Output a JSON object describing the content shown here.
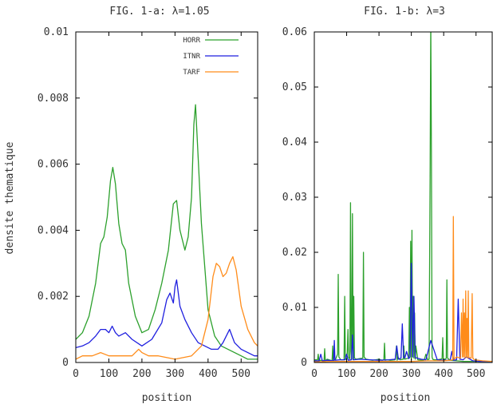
{
  "chart_data": [
    {
      "type": "line",
      "title": "FIG. 1-a: λ=1.05",
      "xlabel": "position",
      "ylabel": "densite thematique",
      "xlim": [
        0,
        550
      ],
      "ylim": [
        0,
        0.01
      ],
      "xticks": [
        0,
        100,
        200,
        300,
        400,
        500
      ],
      "yticks": [
        0,
        0.002,
        0.004,
        0.006,
        0.008,
        0.01
      ],
      "ytick_labels": [
        "0",
        "0.002",
        "0.004",
        "0.006",
        "0.008",
        "0.01"
      ],
      "legend_position": "top-right",
      "grid": false,
      "series": [
        {
          "name": "HORR",
          "color": "#2ca02c",
          "x": [
            0,
            20,
            40,
            60,
            75,
            85,
            95,
            105,
            112,
            120,
            130,
            140,
            150,
            160,
            180,
            200,
            220,
            240,
            260,
            280,
            295,
            305,
            315,
            330,
            340,
            350,
            357,
            362,
            370,
            380,
            400,
            420,
            440,
            460,
            480,
            500,
            520,
            540,
            550
          ],
          "y": [
            0.0007,
            0.0009,
            0.0014,
            0.0024,
            0.0036,
            0.0038,
            0.0044,
            0.0055,
            0.0059,
            0.0054,
            0.0042,
            0.0036,
            0.0034,
            0.0024,
            0.0014,
            0.0009,
            0.001,
            0.0016,
            0.0024,
            0.0034,
            0.0048,
            0.0049,
            0.004,
            0.0034,
            0.0038,
            0.005,
            0.0072,
            0.0078,
            0.0062,
            0.0042,
            0.0016,
            0.0008,
            0.0005,
            0.0004,
            0.0003,
            0.0002,
            0.0001,
            0.0001,
            0.0001
          ]
        },
        {
          "name": "ITNR",
          "color": "#1f1fdf",
          "x": [
            0,
            20,
            40,
            60,
            75,
            90,
            100,
            110,
            120,
            130,
            150,
            170,
            200,
            230,
            260,
            275,
            285,
            295,
            300,
            305,
            315,
            330,
            350,
            370,
            390,
            410,
            430,
            445,
            455,
            465,
            480,
            500,
            520,
            540,
            550
          ],
          "y": [
            0.00045,
            0.0005,
            0.0006,
            0.0008,
            0.001,
            0.001,
            0.0009,
            0.0011,
            0.0009,
            0.0008,
            0.0009,
            0.0007,
            0.0005,
            0.0007,
            0.0012,
            0.0019,
            0.0021,
            0.0018,
            0.0023,
            0.0025,
            0.0017,
            0.0013,
            0.0009,
            0.0006,
            0.0005,
            0.0004,
            0.0004,
            0.0006,
            0.0008,
            0.001,
            0.0006,
            0.0004,
            0.0003,
            0.0002,
            0.0002
          ]
        },
        {
          "name": "TARF",
          "color": "#ff8c1a",
          "x": [
            0,
            20,
            50,
            75,
            100,
            140,
            170,
            190,
            200,
            220,
            250,
            300,
            350,
            380,
            400,
            415,
            425,
            435,
            445,
            455,
            465,
            475,
            485,
            500,
            520,
            540,
            550
          ],
          "y": [
            0.0001,
            0.0002,
            0.0002,
            0.0003,
            0.0002,
            0.0002,
            0.0002,
            0.0004,
            0.0003,
            0.0002,
            0.0002,
            0.0001,
            0.0002,
            0.0005,
            0.0013,
            0.0026,
            0.003,
            0.0029,
            0.0026,
            0.0027,
            0.003,
            0.0032,
            0.0028,
            0.0017,
            0.001,
            0.0006,
            0.0005
          ]
        }
      ]
    },
    {
      "type": "line",
      "title": "FIG. 1-b: λ=3",
      "xlabel": "position",
      "ylabel": "",
      "xlim": [
        0,
        550
      ],
      "ylim": [
        0,
        0.06
      ],
      "xticks": [
        0,
        100,
        200,
        300,
        400,
        500
      ],
      "yticks": [
        0,
        0.01,
        0.02,
        0.03,
        0.04,
        0.05,
        0.06
      ],
      "ytick_labels": [
        "0",
        "0.01",
        "0.02",
        "0.03",
        "0.04",
        "0.05",
        "0.06"
      ],
      "grid": false,
      "series": [
        {
          "name": "HORR",
          "color": "#2ca02c",
          "x": [
            0,
            10,
            12,
            14,
            20,
            30,
            32,
            34,
            40,
            50,
            55,
            57,
            59,
            65,
            72,
            74,
            76,
            82,
            92,
            94,
            96,
            100,
            102,
            104,
            106,
            110,
            112,
            114,
            116,
            118,
            120,
            122,
            124,
            130,
            140,
            150,
            152,
            154,
            160,
            170,
            180,
            190,
            200,
            210,
            215,
            217,
            219,
            225,
            235,
            250,
            254,
            256,
            258,
            265,
            275,
            277,
            279,
            285,
            292,
            294,
            296,
            298,
            300,
            302,
            304,
            306,
            308,
            310,
            312,
            314,
            320,
            330,
            340,
            345,
            350,
            355,
            358,
            360,
            362,
            364,
            366,
            370,
            380,
            390,
            395,
            397,
            399,
            405,
            408,
            410,
            412,
            420,
            440,
            460,
            480,
            500,
            520,
            540,
            550
          ],
          "y": [
            0.0005,
            0.0005,
            0.0015,
            0.0003,
            0.0004,
            0.0003,
            0.0025,
            0.0003,
            0.0006,
            0.0004,
            0.0003,
            0.003,
            0.0004,
            0.0005,
            0.0015,
            0.016,
            0.001,
            0.0005,
            0.0005,
            0.012,
            0.001,
            0.0004,
            0.002,
            0.006,
            0.001,
            0.0006,
            0.029,
            0.002,
            0.0006,
            0.027,
            0.0005,
            0.012,
            0.0008,
            0.0006,
            0.0007,
            0.0008,
            0.02,
            0.001,
            0.0006,
            0.0005,
            0.0004,
            0.0005,
            0.0006,
            0.0004,
            0.0005,
            0.0035,
            0.0004,
            0.0005,
            0.0004,
            0.0005,
            0.003,
            0.0004,
            0.001,
            0.0005,
            0.0006,
            0.003,
            0.0006,
            0.0007,
            0.0008,
            0.01,
            0.001,
            0.022,
            0.0005,
            0.024,
            0.001,
            0.012,
            0.0008,
            0.009,
            0.0006,
            0.003,
            0.0005,
            0.0004,
            0.0005,
            0.0015,
            0.0005,
            0.0006,
            0.035,
            0.062,
            0.038,
            0.001,
            0.0006,
            0.0005,
            0.0005,
            0.0006,
            0.0007,
            0.0045,
            0.0006,
            0.0006,
            0.0008,
            0.015,
            0.0008,
            0.0004,
            0.0003,
            0.0002,
            0.0002,
            0.0002,
            0.0002,
            0.0002,
            0.0002
          ]
        },
        {
          "name": "ITNR",
          "color": "#1f1fdf",
          "x": [
            0,
            15,
            20,
            25,
            40,
            60,
            62,
            64,
            80,
            95,
            100,
            105,
            115,
            118,
            121,
            140,
            170,
            200,
            230,
            250,
            255,
            260,
            268,
            272,
            276,
            280,
            285,
            292,
            296,
            300,
            304,
            308,
            312,
            318,
            330,
            345,
            360,
            380,
            400,
            420,
            425,
            430,
            440,
            445,
            450,
            460,
            470,
            490,
            510,
            530,
            550
          ],
          "y": [
            0.0003,
            0.0003,
            0.0015,
            0.0003,
            0.0004,
            0.0003,
            0.004,
            0.0004,
            0.0005,
            0.0005,
            0.0015,
            0.0004,
            0.0005,
            0.005,
            0.0005,
            0.0006,
            0.0005,
            0.0004,
            0.0005,
            0.0006,
            0.003,
            0.0006,
            0.0008,
            0.007,
            0.001,
            0.0008,
            0.002,
            0.0007,
            0.001,
            0.018,
            0.001,
            0.012,
            0.0009,
            0.0008,
            0.0006,
            0.0005,
            0.004,
            0.0005,
            0.0004,
            0.0004,
            0.002,
            0.0004,
            0.0005,
            0.0115,
            0.0006,
            0.0005,
            0.001,
            0.0003,
            0.0002,
            0.0002,
            0.0002
          ]
        },
        {
          "name": "TARF",
          "color": "#ff8c1a",
          "x": [
            0,
            50,
            100,
            150,
            200,
            250,
            300,
            350,
            400,
            420,
            428,
            430,
            432,
            440,
            452,
            455,
            458,
            460,
            462,
            464,
            466,
            468,
            470,
            472,
            474,
            476,
            478,
            485,
            488,
            490,
            495,
            520,
            550
          ],
          "y": [
            0.0001,
            0.0002,
            0.0002,
            0.0002,
            0.0002,
            0.0002,
            0.0002,
            0.0003,
            0.0003,
            0.0004,
            0.0005,
            0.0265,
            0.0006,
            0.001,
            0.0008,
            0.009,
            0.001,
            0.0115,
            0.001,
            0.009,
            0.0008,
            0.013,
            0.001,
            0.008,
            0.0008,
            0.013,
            0.0009,
            0.0008,
            0.0125,
            0.0008,
            0.0005,
            0.0003,
            0.0002
          ]
        }
      ]
    }
  ]
}
